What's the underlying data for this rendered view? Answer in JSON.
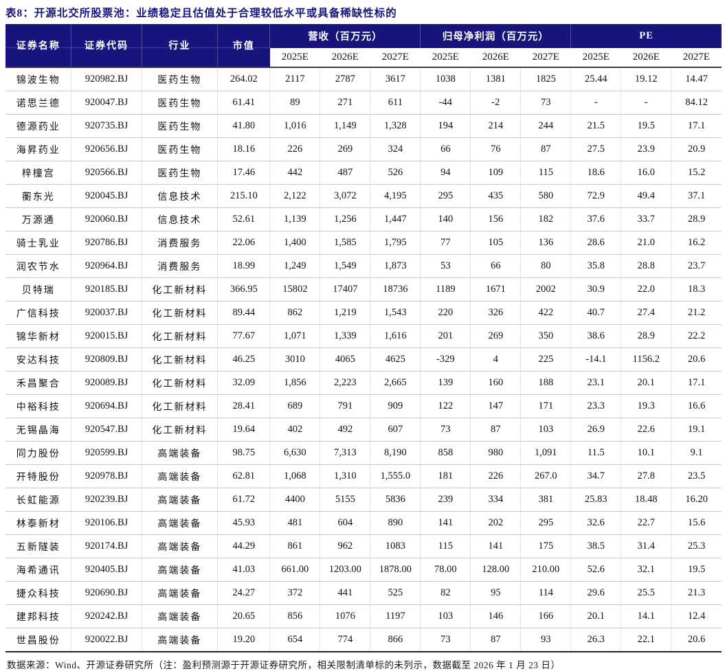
{
  "title": "表8：开源北交所股票池：业绩稳定且估值处于合理较低水平或具备稀缺性标的",
  "colors": {
    "header_navy": "#17157c",
    "title_navy": "#1c1a7e"
  },
  "table": {
    "headers": {
      "name": "证券名称",
      "code": "证券代码",
      "industry": "行业",
      "mktcap": "市值"
    },
    "groups": [
      {
        "label": "营收（百万元）",
        "cols": [
          "2025E",
          "2026E",
          "2027E"
        ]
      },
      {
        "label": "归母净利润（百万元）",
        "cols": [
          "2025E",
          "2026E",
          "2027E"
        ]
      },
      {
        "label": "PE",
        "cols": [
          "2025E",
          "2026E",
          "2027E"
        ]
      }
    ],
    "col_keys": [
      "name",
      "code",
      "industry",
      "mktcap",
      "rev-2025e",
      "rev-2026e",
      "rev-2027e",
      "np-2025e",
      "np-2026e",
      "np-2027e",
      "pe-2025e",
      "pe-2026e",
      "pe-2027e"
    ],
    "rows": [
      [
        "锦波生物",
        "920982.BJ",
        "医药生物",
        "264.02",
        "2117",
        "2787",
        "3617",
        "1038",
        "1381",
        "1825",
        "25.44",
        "19.12",
        "14.47"
      ],
      [
        "诺思兰德",
        "920047.BJ",
        "医药生物",
        "61.41",
        "89",
        "271",
        "611",
        "-44",
        "-2",
        "73",
        "-",
        "-",
        "84.12"
      ],
      [
        "德源药业",
        "920735.BJ",
        "医药生物",
        "41.80",
        "1,016",
        "1,149",
        "1,328",
        "194",
        "214",
        "244",
        "21.5",
        "19.5",
        "17.1"
      ],
      [
        "海昇药业",
        "920656.BJ",
        "医药生物",
        "18.16",
        "226",
        "269",
        "324",
        "66",
        "76",
        "87",
        "27.5",
        "23.9",
        "20.9"
      ],
      [
        "梓橦宫",
        "920566.BJ",
        "医药生物",
        "17.46",
        "442",
        "487",
        "526",
        "94",
        "109",
        "115",
        "18.6",
        "16.0",
        "15.2"
      ],
      [
        "蘅东光",
        "920045.BJ",
        "信息技术",
        "215.10",
        "2,122",
        "3,072",
        "4,195",
        "295",
        "435",
        "580",
        "72.9",
        "49.4",
        "37.1"
      ],
      [
        "万源通",
        "920060.BJ",
        "信息技术",
        "52.61",
        "1,139",
        "1,256",
        "1,447",
        "140",
        "156",
        "182",
        "37.6",
        "33.7",
        "28.9"
      ],
      [
        "骑士乳业",
        "920786.BJ",
        "消费服务",
        "22.06",
        "1,400",
        "1,585",
        "1,795",
        "77",
        "105",
        "136",
        "28.6",
        "21.0",
        "16.2"
      ],
      [
        "润农节水",
        "920964.BJ",
        "消费服务",
        "18.99",
        "1,249",
        "1,549",
        "1,873",
        "53",
        "66",
        "80",
        "35.8",
        "28.8",
        "23.7"
      ],
      [
        "贝特瑞",
        "920185.BJ",
        "化工新材料",
        "366.95",
        "15802",
        "17407",
        "18736",
        "1189",
        "1671",
        "2002",
        "30.9",
        "22.0",
        "18.3"
      ],
      [
        "广信科技",
        "920037.BJ",
        "化工新材料",
        "89.44",
        "862",
        "1,219",
        "1,543",
        "220",
        "326",
        "422",
        "40.7",
        "27.4",
        "21.2"
      ],
      [
        "锦华新材",
        "920015.BJ",
        "化工新材料",
        "77.67",
        "1,071",
        "1,339",
        "1,616",
        "201",
        "269",
        "350",
        "38.6",
        "28.9",
        "22.2"
      ],
      [
        "安达科技",
        "920809.BJ",
        "化工新材料",
        "46.25",
        "3010",
        "4065",
        "4625",
        "-329",
        "4",
        "225",
        "-14.1",
        "1156.2",
        "20.6"
      ],
      [
        "禾昌聚合",
        "920089.BJ",
        "化工新材料",
        "32.09",
        "1,856",
        "2,223",
        "2,665",
        "139",
        "160",
        "188",
        "23.1",
        "20.1",
        "17.1"
      ],
      [
        "中裕科技",
        "920694.BJ",
        "化工新材料",
        "28.41",
        "689",
        "791",
        "909",
        "122",
        "147",
        "171",
        "23.3",
        "19.3",
        "16.6"
      ],
      [
        "无锡晶海",
        "920547.BJ",
        "化工新材料",
        "19.64",
        "402",
        "492",
        "607",
        "73",
        "87",
        "103",
        "26.9",
        "22.6",
        "19.1"
      ],
      [
        "同力股份",
        "920599.BJ",
        "高端装备",
        "98.75",
        "6,630",
        "7,313",
        "8,190",
        "858",
        "980",
        "1,091",
        "11.5",
        "10.1",
        "9.1"
      ],
      [
        "开特股份",
        "920978.BJ",
        "高端装备",
        "62.81",
        "1,068",
        "1,310",
        "1,555.0",
        "181",
        "226",
        "267.0",
        "34.7",
        "27.8",
        "23.5"
      ],
      [
        "长虹能源",
        "920239.BJ",
        "高端装备",
        "61.72",
        "4400",
        "5155",
        "5836",
        "239",
        "334",
        "381",
        "25.83",
        "18.48",
        "16.20"
      ],
      [
        "林泰新材",
        "920106.BJ",
        "高端装备",
        "45.93",
        "481",
        "604",
        "890",
        "141",
        "202",
        "295",
        "32.6",
        "22.7",
        "15.6"
      ],
      [
        "五新隧装",
        "920174.BJ",
        "高端装备",
        "44.29",
        "861",
        "962",
        "1083",
        "115",
        "141",
        "175",
        "38.5",
        "31.4",
        "25.3"
      ],
      [
        "海希通讯",
        "920405.BJ",
        "高端装备",
        "41.03",
        "661.00",
        "1203.00",
        "1878.00",
        "78.00",
        "128.00",
        "210.00",
        "52.6",
        "32.1",
        "19.5"
      ],
      [
        "捷众科技",
        "920690.BJ",
        "高端装备",
        "24.27",
        "372",
        "441",
        "525",
        "82",
        "95",
        "114",
        "29.6",
        "25.5",
        "21.3"
      ],
      [
        "建邦科技",
        "920242.BJ",
        "高端装备",
        "20.65",
        "856",
        "1076",
        "1197",
        "103",
        "146",
        "166",
        "20.1",
        "14.1",
        "12.4"
      ],
      [
        "世昌股份",
        "920022.BJ",
        "高端装备",
        "19.20",
        "654",
        "774",
        "866",
        "73",
        "87",
        "93",
        "26.3",
        "22.1",
        "20.6"
      ]
    ]
  },
  "footer": "数据来源：Wind、开源证券研究所（注：盈利预测源于开源证券研究所，相关限制清单标的未列示，数据截至 2026 年 1 月 23 日）"
}
